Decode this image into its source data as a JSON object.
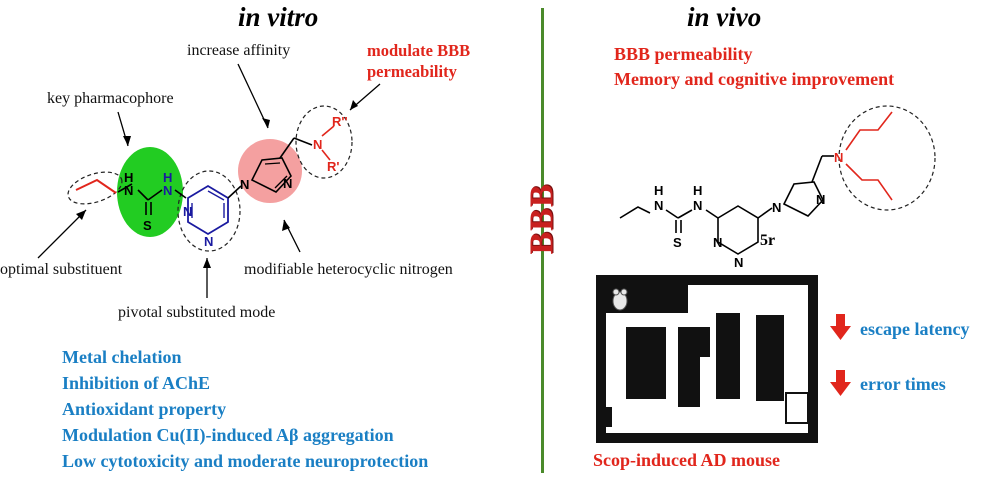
{
  "left": {
    "title": "in vitro",
    "annotations": {
      "increase_affinity": "increase affinity",
      "modulate_bbb": [
        "modulate BBB",
        "permeability"
      ],
      "key_pharmacophore": "key pharmacophore",
      "optimal_substituent": "optimal substituent",
      "modifiable_nitrogen": "modifiable heterocyclic nitrogen",
      "pivotal_mode": "pivotal substituted mode"
    },
    "molecule_labels": {
      "nh1": "H",
      "n1": "N",
      "nh2": "H",
      "n2": "N",
      "s": "S",
      "n_ring1": "N",
      "n_ring2": "N",
      "n_im1": "N",
      "n_im2": "N",
      "n_amine": "N",
      "r2": "R''",
      "r1": "R'"
    },
    "properties": [
      "Metal chelation",
      "Inhibition of AChE",
      "Antioxidant property",
      "Modulation Cu(II)-induced Aβ aggregation",
      "Low cytotoxicity and moderate neuroprotection"
    ]
  },
  "divider_label": "BBB",
  "right": {
    "title": "in vivo",
    "effects": [
      "BBB permeability",
      "Memory and cognitive improvement"
    ],
    "compound_label": "5r",
    "molecule_labels": {
      "nh1": "H",
      "n1": "N",
      "nh2": "H",
      "n2": "N",
      "s": "S",
      "n_ring1": "N",
      "n_ring2": "N",
      "n_im1": "N",
      "n_im2": "N",
      "n_amine": "N"
    },
    "maze_results": [
      "escape latency",
      "error times"
    ],
    "model_label": "Scop-induced AD mouse"
  },
  "colors": {
    "red": "#e1261c",
    "blue": "#1a7fc4",
    "divider_green": "#4a8a2a",
    "pharmacophore_green": "#22cc22",
    "ring_blue": "#1a1aa0",
    "imidazole_pink": "#f4a0a0"
  }
}
